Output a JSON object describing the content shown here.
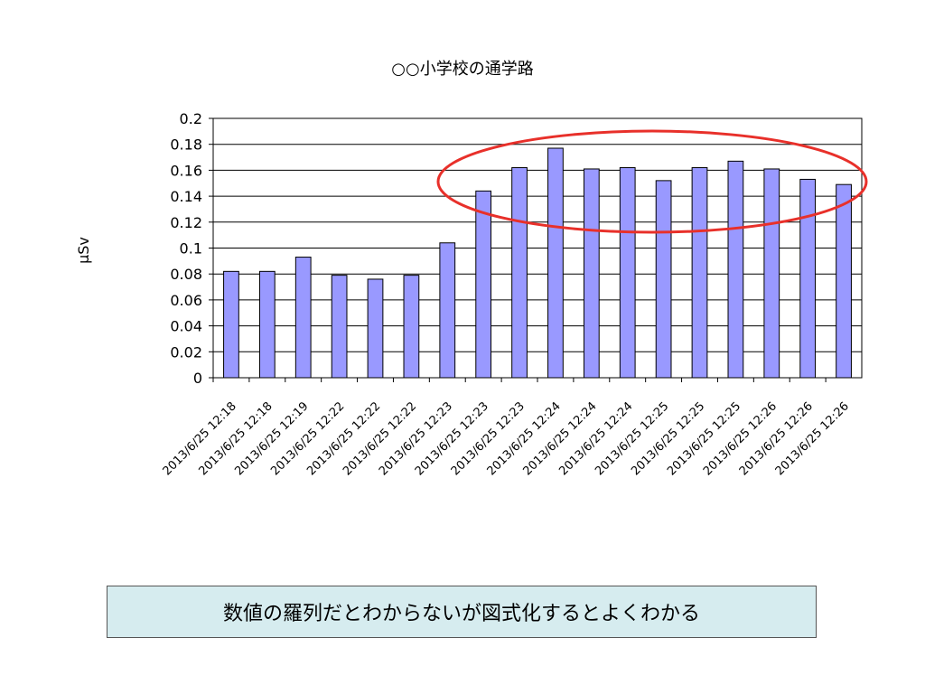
{
  "chart_data": {
    "type": "bar",
    "title": "○○小学校の通学路",
    "ylabel": "μSv",
    "xlabel": "",
    "ylim": [
      0,
      0.2
    ],
    "yticks": [
      "0",
      "0.02",
      "0.04",
      "0.06",
      "0.08",
      "0.1",
      "0.12",
      "0.14",
      "0.16",
      "0.18",
      "0.2"
    ],
    "grid": true,
    "legend": "none",
    "bar_color": "#9999ff",
    "highlight_color": "#e8302a",
    "categories": [
      "2013/6/25 12:18",
      "2013/6/25 12:18",
      "2013/6/25 12:19",
      "2013/6/25 12:22",
      "2013/6/25 12:22",
      "2013/6/25 12:22",
      "2013/6/25 12:23",
      "2013/6/25 12:23",
      "2013/6/25 12:23",
      "2013/6/25 12:24",
      "2013/6/25 12:24",
      "2013/6/25 12:24",
      "2013/6/25 12:25",
      "2013/6/25 12:25",
      "2013/6/25 12:25",
      "2013/6/25 12:26",
      "2013/6/25 12:26",
      "2013/6/25 12:26"
    ],
    "values": [
      0.082,
      0.082,
      0.093,
      0.079,
      0.076,
      0.079,
      0.104,
      0.144,
      0.162,
      0.177,
      0.161,
      0.162,
      0.152,
      0.162,
      0.167,
      0.161,
      0.153,
      0.149
    ]
  },
  "caption": "数値の羅列だとわからないが図式化するとよくわかる"
}
